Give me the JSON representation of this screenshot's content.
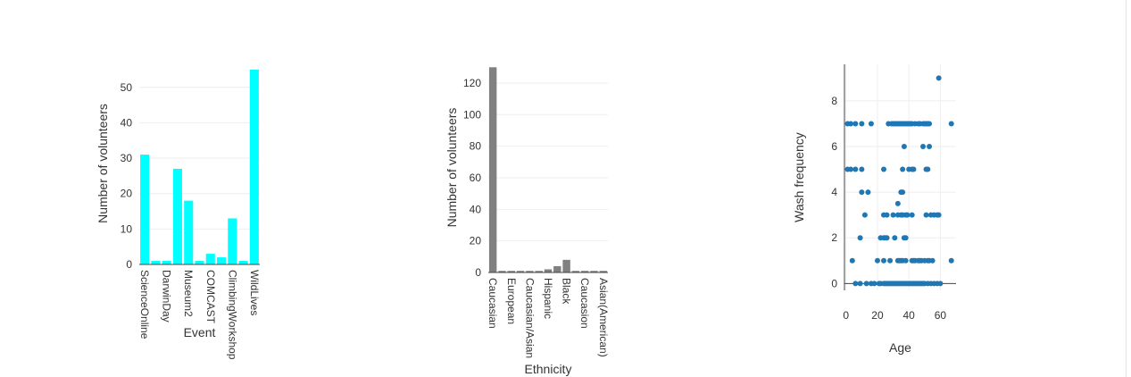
{
  "chart_data": [
    {
      "type": "bar",
      "color": "#00ffff",
      "categories": [
        "ScienceOnline",
        "",
        "DarwinDay",
        "",
        "Museum2",
        "",
        "COMCAST",
        "",
        "ClimbingWorkshop",
        "",
        "WildLives"
      ],
      "values": [
        31,
        1,
        1,
        27,
        18,
        1,
        3,
        2,
        13,
        1,
        55
      ],
      "xlabel": "Event",
      "ylabel": "Number of volunteers",
      "ylim": [
        0,
        57
      ],
      "yticks": [
        0,
        10,
        20,
        30,
        40,
        50
      ],
      "grid": true
    },
    {
      "type": "bar",
      "color": "#808080",
      "categories": [
        "Caucasian",
        "",
        "European",
        "",
        "Caucasian/Asian",
        "",
        "Hispanic",
        "",
        "Black",
        "",
        "Caucasion",
        "",
        "Asian(American)"
      ],
      "values": [
        130,
        1,
        1,
        1,
        1,
        1,
        2,
        4,
        8,
        1,
        1,
        1,
        1
      ],
      "xlabel": "Ethnicity",
      "ylabel": "Number of volunteers",
      "ylim": [
        0,
        133
      ],
      "yticks": [
        0,
        20,
        40,
        60,
        80,
        100,
        120
      ],
      "grid": true
    },
    {
      "type": "scatter",
      "color": "#1f77b4",
      "xlabel": "Age",
      "ylabel": "Wash frequency",
      "xlim": [
        -1,
        70
      ],
      "ylim": [
        -0.3,
        9.6
      ],
      "xticks": [
        0,
        20,
        40,
        60
      ],
      "yticks": [
        0,
        2,
        4,
        6,
        8
      ],
      "grid": true,
      "points": [
        [
          1,
          7
        ],
        [
          3,
          7
        ],
        [
          6,
          7
        ],
        [
          10,
          7
        ],
        [
          16,
          7
        ],
        [
          27,
          7
        ],
        [
          29,
          7
        ],
        [
          30,
          7
        ],
        [
          31,
          7
        ],
        [
          32,
          7
        ],
        [
          33,
          7
        ],
        [
          34,
          7
        ],
        [
          35,
          7
        ],
        [
          36,
          7
        ],
        [
          37,
          7
        ],
        [
          38,
          7
        ],
        [
          39,
          7
        ],
        [
          40,
          7
        ],
        [
          41,
          7
        ],
        [
          42,
          7
        ],
        [
          44,
          7
        ],
        [
          46,
          7
        ],
        [
          47,
          7
        ],
        [
          49,
          7
        ],
        [
          50,
          7
        ],
        [
          51,
          7
        ],
        [
          52,
          7
        ],
        [
          53,
          7
        ],
        [
          67,
          7
        ],
        [
          1,
          5
        ],
        [
          3,
          5
        ],
        [
          6,
          5
        ],
        [
          10,
          5
        ],
        [
          24,
          5
        ],
        [
          36,
          5
        ],
        [
          40,
          5
        ],
        [
          42,
          5
        ],
        [
          43,
          5
        ],
        [
          51,
          5
        ],
        [
          52,
          5
        ],
        [
          37,
          6
        ],
        [
          49,
          6
        ],
        [
          53,
          6
        ],
        [
          10,
          4
        ],
        [
          14,
          4
        ],
        [
          35,
          4
        ],
        [
          36,
          4
        ],
        [
          59,
          9
        ],
        [
          33,
          3.5
        ],
        [
          12,
          3
        ],
        [
          24,
          3
        ],
        [
          26,
          3
        ],
        [
          30,
          3
        ],
        [
          33,
          3
        ],
        [
          35,
          3
        ],
        [
          36,
          3
        ],
        [
          38,
          3
        ],
        [
          39,
          3
        ],
        [
          42,
          3
        ],
        [
          51,
          3
        ],
        [
          54,
          3
        ],
        [
          56,
          3
        ],
        [
          58,
          3
        ],
        [
          59,
          3
        ],
        [
          9,
          2
        ],
        [
          22,
          2
        ],
        [
          24,
          2
        ],
        [
          25,
          2
        ],
        [
          26,
          2
        ],
        [
          31,
          2
        ],
        [
          37,
          2
        ],
        [
          38,
          2
        ],
        [
          4,
          1
        ],
        [
          20,
          1
        ],
        [
          24,
          1
        ],
        [
          28,
          1
        ],
        [
          33,
          1
        ],
        [
          34,
          1
        ],
        [
          35,
          1
        ],
        [
          36,
          1
        ],
        [
          38,
          1
        ],
        [
          42,
          1
        ],
        [
          43,
          1
        ],
        [
          44,
          1
        ],
        [
          46,
          1
        ],
        [
          47,
          1
        ],
        [
          48,
          1
        ],
        [
          50,
          1
        ],
        [
          52,
          1
        ],
        [
          53,
          1
        ],
        [
          55,
          1
        ],
        [
          67,
          1
        ],
        [
          6,
          0
        ],
        [
          9,
          0
        ],
        [
          13,
          0
        ],
        [
          16,
          0
        ],
        [
          18,
          0
        ],
        [
          21,
          0
        ],
        [
          22,
          0
        ],
        [
          24,
          0
        ],
        [
          25,
          0
        ],
        [
          26,
          0
        ],
        [
          27,
          0
        ],
        [
          28,
          0
        ],
        [
          29,
          0
        ],
        [
          30,
          0
        ],
        [
          31,
          0
        ],
        [
          32,
          0
        ],
        [
          33,
          0
        ],
        [
          34,
          0
        ],
        [
          35,
          0
        ],
        [
          36,
          0
        ],
        [
          37,
          0
        ],
        [
          38,
          0
        ],
        [
          39,
          0
        ],
        [
          40,
          0
        ],
        [
          41,
          0
        ],
        [
          42,
          0
        ],
        [
          43,
          0
        ],
        [
          44,
          0
        ],
        [
          45,
          0
        ],
        [
          46,
          0
        ],
        [
          47,
          0
        ],
        [
          48,
          0
        ],
        [
          49,
          0
        ],
        [
          50,
          0
        ],
        [
          52,
          0
        ],
        [
          54,
          0
        ],
        [
          56,
          0
        ],
        [
          58,
          0
        ],
        [
          60,
          0
        ]
      ]
    }
  ]
}
